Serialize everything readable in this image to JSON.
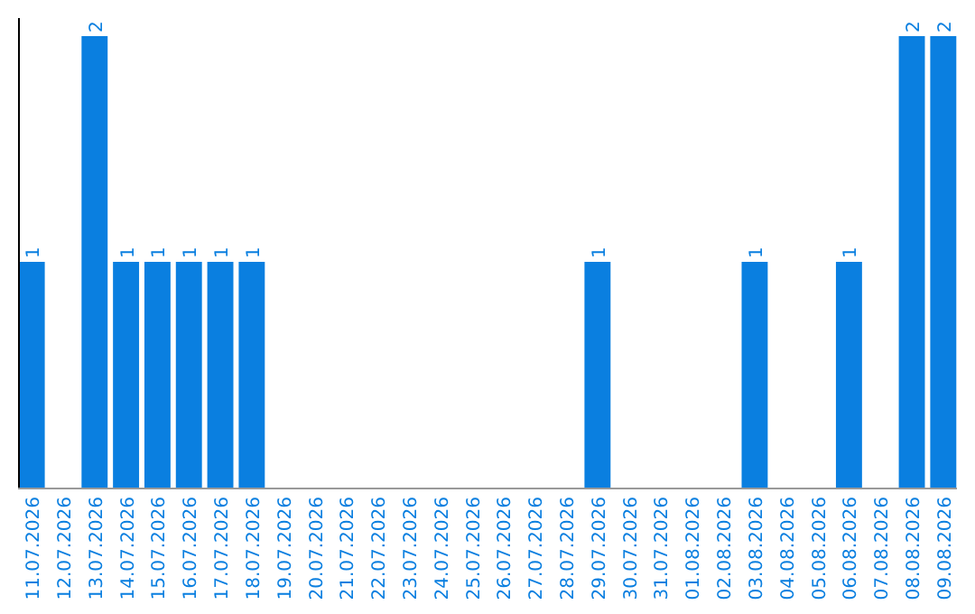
{
  "chart_data": {
    "type": "bar",
    "categories": [
      "11.07.2026",
      "12.07.2026",
      "13.07.2026",
      "14.07.2026",
      "15.07.2026",
      "16.07.2026",
      "17.07.2026",
      "18.07.2026",
      "19.07.2026",
      "20.07.2026",
      "21.07.2026",
      "22.07.2026",
      "23.07.2026",
      "24.07.2026",
      "25.07.2026",
      "26.07.2026",
      "27.07.2026",
      "28.07.2026",
      "29.07.2026",
      "30.07.2026",
      "31.07.2026",
      "01.08.2026",
      "02.08.2026",
      "03.08.2026",
      "04.08.2026",
      "05.08.2026",
      "06.08.2026",
      "07.08.2026",
      "08.08.2026",
      "09.08.2026"
    ],
    "values": [
      1,
      0,
      2,
      1,
      1,
      1,
      1,
      1,
      0,
      0,
      0,
      0,
      0,
      0,
      0,
      0,
      0,
      0,
      1,
      0,
      0,
      0,
      0,
      1,
      0,
      0,
      1,
      0,
      2,
      2
    ],
    "value_labels": [
      "1",
      null,
      "2",
      "1",
      "1",
      "1",
      "1",
      "1",
      null,
      null,
      null,
      null,
      null,
      null,
      null,
      null,
      null,
      null,
      "1",
      null,
      null,
      null,
      null,
      "1",
      null,
      null,
      "1",
      null,
      "2",
      "2"
    ],
    "color": "#0a7fe0",
    "ylim": [
      0,
      2.08
    ],
    "tick_labels": "x"
  }
}
